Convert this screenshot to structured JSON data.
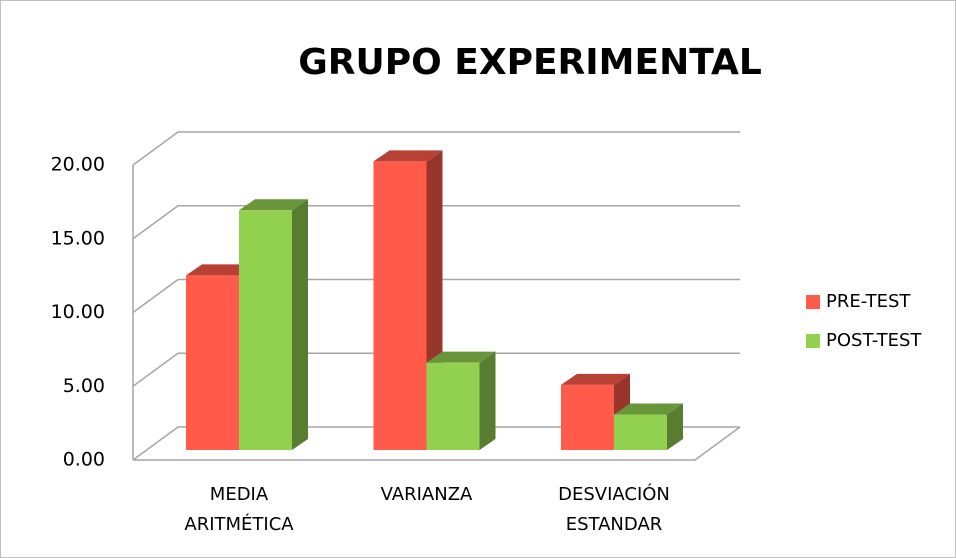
{
  "chart_data": {
    "type": "bar3d",
    "title": "GRUPO EXPERIMENTAL",
    "categories": [
      "MEDIA ARITMÉTICA",
      "VARIANZA",
      "DESVIACIÓN ESTANDAR"
    ],
    "series": [
      {
        "name": "PRE-TEST",
        "color": "#ff5a4a",
        "values": [
          11.8,
          19.5,
          4.4
        ]
      },
      {
        "name": "POST-TEST",
        "color": "#92d050",
        "values": [
          16.2,
          5.9,
          2.4
        ]
      }
    ],
    "ylim": [
      0,
      20
    ],
    "yticks": [
      {
        "value": 0,
        "label": "0.00"
      },
      {
        "value": 5,
        "label": "5.00"
      },
      {
        "value": 10,
        "label": "10.00"
      },
      {
        "value": 15,
        "label": "15.00"
      },
      {
        "value": 20,
        "label": "20.00"
      }
    ],
    "grid": true,
    "legend": "right"
  }
}
